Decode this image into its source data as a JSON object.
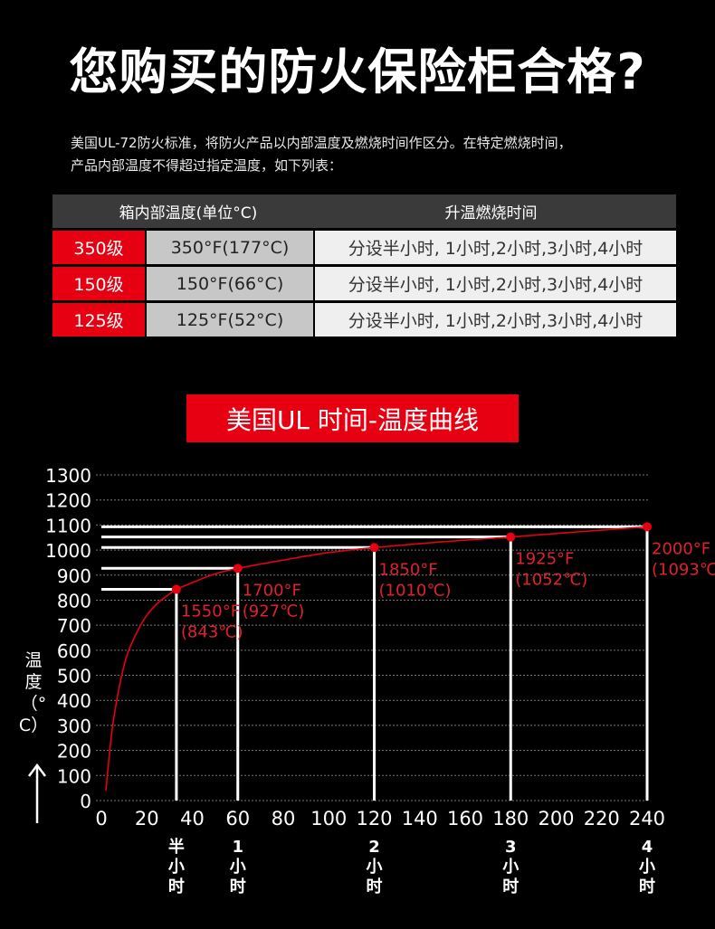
{
  "page": {
    "title": "您购买的防火保险柜合格?",
    "intro_line1": "美国UL-72防火标准，将防火产品以内部温度及燃烧时间作区分。在特定燃烧时间，",
    "intro_line2": "产品内部温度不得超过指定温度，如下列表："
  },
  "table": {
    "header_temp": "箱内部温度(单位°C)",
    "header_time": "升温燃烧时间",
    "rows": [
      {
        "grade": "350级",
        "temp": "350°F(177°C)",
        "time": "分设半小时, 1小时,2小时,3小时,4小时"
      },
      {
        "grade": "150级",
        "temp": "150°F(66°C)",
        "time": "分设半小时, 1小时,2小时,3小时,4小时"
      },
      {
        "grade": "125级",
        "temp": "125°F(52°C)",
        "time": "分设半小时, 1小时,2小时,3小时,4小时"
      }
    ]
  },
  "colors": {
    "accent": "#e60012",
    "curve": "#e60012",
    "annotation": "#e0202a",
    "background": "#000000"
  },
  "chart_data": {
    "type": "line",
    "title": "美国UL 时间-温度曲线",
    "ylabel": "温度（°C）",
    "xlabel": "",
    "xlim": [
      0,
      240
    ],
    "ylim": [
      0,
      1300
    ],
    "x_ticks": [
      0,
      20,
      40,
      60,
      80,
      100,
      120,
      140,
      160,
      180,
      200,
      220,
      240
    ],
    "y_ticks": [
      0,
      100,
      200,
      300,
      400,
      500,
      600,
      700,
      800,
      900,
      1000,
      1100,
      1200,
      1300
    ],
    "grid": "horizontal dotted",
    "series": [
      {
        "x": [
          2,
          5,
          10,
          15,
          20,
          25,
          30,
          33,
          40,
          50,
          60,
          80,
          100,
          120,
          150,
          180,
          210,
          240
        ],
        "y": [
          40,
          300,
          540,
          660,
          740,
          790,
          825,
          843,
          870,
          905,
          927,
          960,
          990,
          1010,
          1033,
          1052,
          1073,
          1093
        ]
      }
    ],
    "points": [
      {
        "x": 33,
        "y": 843,
        "label_f": "1550°F",
        "label_c": "(843℃)",
        "time_label": "半小时"
      },
      {
        "x": 60,
        "y": 927,
        "label_f": "1700°F",
        "label_c": "(927℃)",
        "time_label": "1小时"
      },
      {
        "x": 120,
        "y": 1010,
        "label_f": "1850°F",
        "label_c": "(1010℃)",
        "time_label": "2小时"
      },
      {
        "x": 180,
        "y": 1052,
        "label_f": "1925°F",
        "label_c": "(1052℃)",
        "time_label": "3小时"
      },
      {
        "x": 240,
        "y": 1093,
        "label_f": "2000°F",
        "label_c": "(1093℃)",
        "time_label": "4小时"
      }
    ]
  }
}
